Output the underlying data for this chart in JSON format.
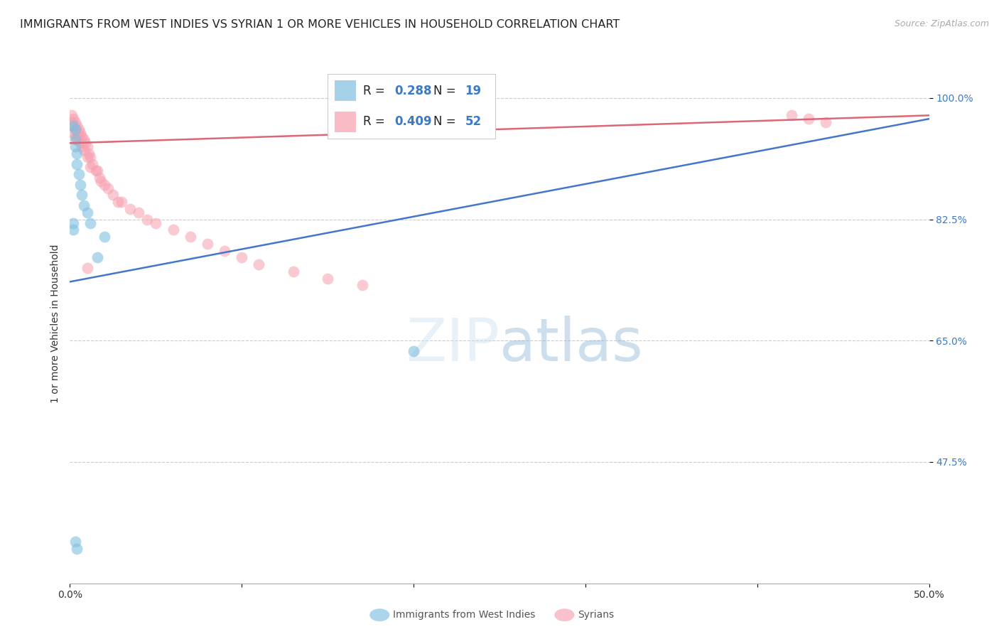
{
  "title": "IMMIGRANTS FROM WEST INDIES VS SYRIAN 1 OR MORE VEHICLES IN HOUSEHOLD CORRELATION CHART",
  "source": "Source: ZipAtlas.com",
  "ylabel": "1 or more Vehicles in Household",
  "xlim": [
    0.0,
    0.5
  ],
  "ylim": [
    0.3,
    1.05
  ],
  "xtick_positions": [
    0.0,
    0.1,
    0.2,
    0.3,
    0.4,
    0.5
  ],
  "xticklabels": [
    "0.0%",
    "",
    "",
    "",
    "",
    "50.0%"
  ],
  "ytick_positions": [
    0.475,
    0.65,
    0.825,
    1.0
  ],
  "yticklabels": [
    "47.5%",
    "65.0%",
    "82.5%",
    "100.0%"
  ],
  "background_color": "#ffffff",
  "legend_R1": "0.288",
  "legend_N1": "19",
  "legend_R2": "0.409",
  "legend_N2": "52",
  "label1": "Immigrants from West Indies",
  "label2": "Syrians",
  "color1": "#7fbfdf",
  "color2": "#f7a0b0",
  "line_color1": "#4477cc",
  "line_color2": "#dd6677",
  "title_fontsize": 11.5,
  "axis_label_fontsize": 10,
  "tick_fontsize": 10,
  "blue_line_x": [
    0.0,
    0.5
  ],
  "blue_line_y": [
    0.735,
    0.97
  ],
  "pink_line_x": [
    0.0,
    0.5
  ],
  "pink_line_y": [
    0.935,
    0.975
  ],
  "wi_x": [
    0.002,
    0.003,
    0.003,
    0.003,
    0.004,
    0.004,
    0.005,
    0.006,
    0.007,
    0.008,
    0.01,
    0.012,
    0.016,
    0.02,
    0.002,
    0.002,
    0.2,
    0.003,
    0.004
  ],
  "wi_y": [
    0.96,
    0.955,
    0.94,
    0.93,
    0.92,
    0.905,
    0.89,
    0.875,
    0.86,
    0.845,
    0.835,
    0.82,
    0.77,
    0.8,
    0.82,
    0.81,
    0.635,
    0.36,
    0.35
  ],
  "sy_x": [
    0.001,
    0.001,
    0.002,
    0.002,
    0.002,
    0.003,
    0.003,
    0.003,
    0.004,
    0.004,
    0.004,
    0.005,
    0.005,
    0.006,
    0.006,
    0.007,
    0.007,
    0.008,
    0.008,
    0.009,
    0.01,
    0.01,
    0.011,
    0.012,
    0.012,
    0.013,
    0.015,
    0.016,
    0.017,
    0.018,
    0.02,
    0.022,
    0.025,
    0.028,
    0.03,
    0.035,
    0.04,
    0.045,
    0.05,
    0.06,
    0.07,
    0.08,
    0.09,
    0.1,
    0.11,
    0.13,
    0.15,
    0.17,
    0.42,
    0.43,
    0.44,
    0.01
  ],
  "sy_y": [
    0.975,
    0.965,
    0.97,
    0.96,
    0.95,
    0.965,
    0.955,
    0.945,
    0.96,
    0.95,
    0.94,
    0.955,
    0.945,
    0.95,
    0.935,
    0.945,
    0.93,
    0.94,
    0.925,
    0.935,
    0.93,
    0.915,
    0.92,
    0.915,
    0.9,
    0.905,
    0.895,
    0.895,
    0.885,
    0.88,
    0.875,
    0.87,
    0.86,
    0.85,
    0.85,
    0.84,
    0.835,
    0.825,
    0.82,
    0.81,
    0.8,
    0.79,
    0.78,
    0.77,
    0.76,
    0.75,
    0.74,
    0.73,
    0.975,
    0.97,
    0.965,
    0.755
  ]
}
